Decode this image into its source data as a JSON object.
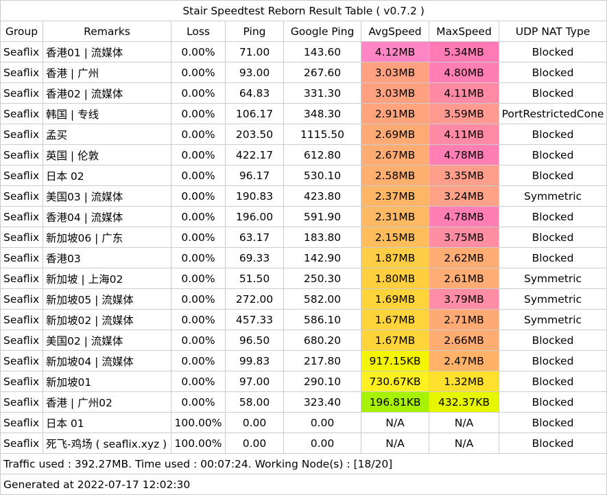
{
  "title": "Stair Speedtest Reborn Result Table ( v0.7.2 )",
  "headers": [
    "Group",
    "Remarks",
    "Loss",
    "Ping",
    "Google Ping",
    "AvgSpeed",
    "MaxSpeed",
    "UDP NAT Type"
  ],
  "rows": [
    {
      "group": "Seaflix",
      "remarks": "香港01 | 流媒体",
      "loss": "0.00%",
      "ping": "71.00",
      "gping": "143.60",
      "avg": "4.12MB",
      "avg_color": "#ff85c4",
      "max": "5.34MB",
      "max_color": "#ff7ab5",
      "nat": "Blocked"
    },
    {
      "group": "Seaflix",
      "remarks": "香港 | 广州",
      "loss": "0.00%",
      "ping": "93.00",
      "gping": "267.60",
      "avg": "3.03MB",
      "avg_color": "#ffa07f",
      "max": "4.80MB",
      "max_color": "#ff7eb4",
      "nat": "Blocked"
    },
    {
      "group": "Seaflix",
      "remarks": "香港02 | 流媒体",
      "loss": "0.00%",
      "ping": "64.83",
      "gping": "331.30",
      "avg": "3.03MB",
      "avg_color": "#ffa07f",
      "max": "4.11MB",
      "max_color": "#ff8aa4",
      "nat": "Blocked"
    },
    {
      "group": "Seaflix",
      "remarks": "韩国 | 专线",
      "loss": "0.00%",
      "ping": "106.17",
      "gping": "348.30",
      "avg": "2.91MB",
      "avg_color": "#ffa47c",
      "max": "3.59MB",
      "max_color": "#ff9a90",
      "nat": "PortRestrictedCone"
    },
    {
      "group": "Seaflix",
      "remarks": "孟买",
      "loss": "0.00%",
      "ping": "203.50",
      "gping": "1115.50",
      "avg": "2.69MB",
      "avg_color": "#ffab73",
      "max": "4.11MB",
      "max_color": "#ff8aa4",
      "nat": "Blocked"
    },
    {
      "group": "Seaflix",
      "remarks": "英国 | 伦敦",
      "loss": "0.00%",
      "ping": "422.17",
      "gping": "612.80",
      "avg": "2.67MB",
      "avg_color": "#ffac72",
      "max": "4.78MB",
      "max_color": "#ff7eb4",
      "nat": "Blocked"
    },
    {
      "group": "Seaflix",
      "remarks": "日本 02",
      "loss": "0.00%",
      "ping": "96.17",
      "gping": "530.10",
      "avg": "2.58MB",
      "avg_color": "#ffaf6e",
      "max": "3.35MB",
      "max_color": "#ff9f8b",
      "nat": "Blocked"
    },
    {
      "group": "Seaflix",
      "remarks": "美国03 | 流媒体",
      "loss": "0.00%",
      "ping": "190.83",
      "gping": "423.80",
      "avg": "2.37MB",
      "avg_color": "#ffb566",
      "max": "3.24MB",
      "max_color": "#ffa287",
      "nat": "Symmetric"
    },
    {
      "group": "Seaflix",
      "remarks": "香港04 | 流媒体",
      "loss": "0.00%",
      "ping": "196.00",
      "gping": "591.90",
      "avg": "2.31MB",
      "avg_color": "#ffb863",
      "max": "4.78MB",
      "max_color": "#ff7eb4",
      "nat": "Blocked"
    },
    {
      "group": "Seaflix",
      "remarks": "新加坡06 | 广东",
      "loss": "0.00%",
      "ping": "63.17",
      "gping": "183.80",
      "avg": "2.15MB",
      "avg_color": "#ffbd5c",
      "max": "3.75MB",
      "max_color": "#ff8ea3",
      "nat": "Blocked"
    },
    {
      "group": "Seaflix",
      "remarks": "香港03",
      "loss": "0.00%",
      "ping": "69.33",
      "gping": "142.90",
      "avg": "1.87MB",
      "avg_color": "#ffcc45",
      "max": "2.62MB",
      "max_color": "#ffad74",
      "nat": "Blocked"
    },
    {
      "group": "Seaflix",
      "remarks": "新加坡 | 上海02",
      "loss": "0.00%",
      "ping": "51.50",
      "gping": "250.30",
      "avg": "1.80MB",
      "avg_color": "#ffcf40",
      "max": "2.61MB",
      "max_color": "#ffad74",
      "nat": "Symmetric"
    },
    {
      "group": "Seaflix",
      "remarks": "新加坡05 | 流媒体",
      "loss": "0.00%",
      "ping": "272.00",
      "gping": "582.00",
      "avg": "1.69MB",
      "avg_color": "#ffd33a",
      "max": "3.79MB",
      "max_color": "#ff8da5",
      "nat": "Symmetric"
    },
    {
      "group": "Seaflix",
      "remarks": "新加坡02 | 流媒体",
      "loss": "0.00%",
      "ping": "457.33",
      "gping": "586.10",
      "avg": "1.67MB",
      "avg_color": "#ffd33a",
      "max": "2.71MB",
      "max_color": "#ffaa75",
      "nat": "Symmetric"
    },
    {
      "group": "Seaflix",
      "remarks": "美国02 | 流媒体",
      "loss": "0.00%",
      "ping": "96.50",
      "gping": "680.20",
      "avg": "1.67MB",
      "avg_color": "#ffd33a",
      "max": "2.66MB",
      "max_color": "#ffac73",
      "nat": "Blocked"
    },
    {
      "group": "Seaflix",
      "remarks": "新加坡04 | 流媒体",
      "loss": "0.00%",
      "ping": "99.83",
      "gping": "217.80",
      "avg": "917.15KB",
      "avg_color": "#f5f500",
      "max": "2.47MB",
      "max_color": "#ffb268",
      "nat": "Blocked"
    },
    {
      "group": "Seaflix",
      "remarks": "新加坡01",
      "loss": "0.00%",
      "ping": "97.00",
      "gping": "290.10",
      "avg": "730.67KB",
      "avg_color": "#fff021",
      "max": "1.32MB",
      "max_color": "#ffe02d",
      "nat": "Blocked"
    },
    {
      "group": "Seaflix",
      "remarks": "香港 | 广州02",
      "loss": "0.00%",
      "ping": "58.00",
      "gping": "323.40",
      "avg": "196.81KB",
      "avg_color": "#a6f200",
      "max": "432.37KB",
      "max_color": "#e6f500",
      "nat": "Blocked"
    },
    {
      "group": "Seaflix",
      "remarks": "日本 01",
      "loss": "100.00%",
      "ping": "0.00",
      "gping": "0.00",
      "avg": "N/A",
      "avg_color": "#ffffff",
      "max": "N/A",
      "max_color": "#ffffff",
      "nat": "Blocked"
    },
    {
      "group": "Seaflix",
      "remarks": "死飞-鸡场 ( seaflix.xyz )",
      "loss": "100.00%",
      "ping": "0.00",
      "gping": "0.00",
      "avg": "N/A",
      "avg_color": "#ffffff",
      "max": "N/A",
      "max_color": "#ffffff",
      "nat": "Blocked"
    }
  ],
  "footer": {
    "traffic": "Traffic used : 392.27MB. Time used : 00:07:24. Working Node(s) : [18/20]",
    "generated": "Generated at 2022-07-17 12:02:30"
  }
}
